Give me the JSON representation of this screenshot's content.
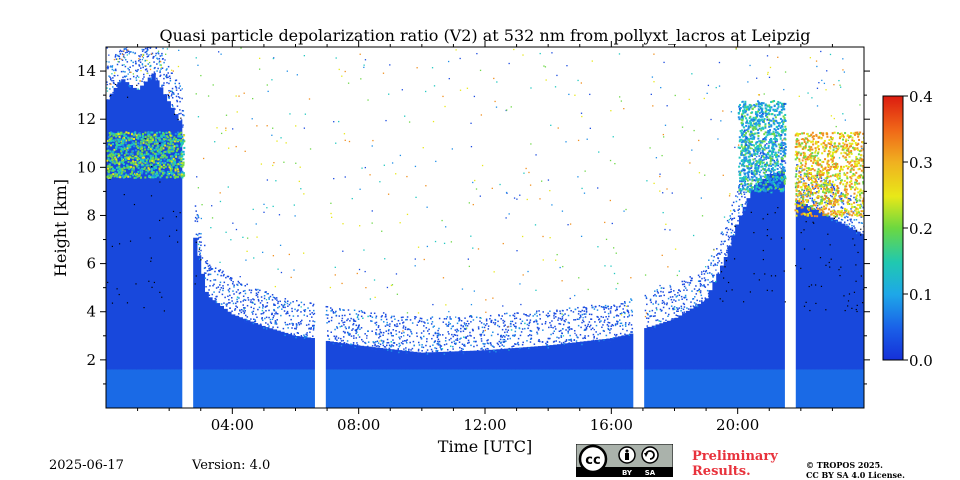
{
  "chart_data": {
    "type": "heatmap",
    "title": "Quasi particle depolarization ratio (V2) at 532 nm from pollyxt_lacros at Leipzig",
    "xlabel": "Time [UTC]",
    "ylabel": "Height [km]",
    "xlim": [
      0,
      24
    ],
    "ylim": [
      0,
      15
    ],
    "x_ticks": [
      {
        "value": 4,
        "label": "04:00"
      },
      {
        "value": 8,
        "label": "08:00"
      },
      {
        "value": 12,
        "label": "12:00"
      },
      {
        "value": 16,
        "label": "16:00"
      },
      {
        "value": 20,
        "label": "20:00"
      }
    ],
    "y_ticks": [
      2,
      4,
      6,
      8,
      10,
      12,
      14
    ],
    "colorbar": {
      "range": [
        0.0,
        0.4
      ],
      "ticks": [
        "0.0",
        "0.1",
        "0.2",
        "0.3",
        "0.4"
      ],
      "colormap": "jet",
      "colors": [
        "#1a4be0",
        "#1f8fe8",
        "#22c8c0",
        "#6fd84a",
        "#e8e81a",
        "#f09020",
        "#dc1c10"
      ]
    },
    "data_gaps_utc": [
      [
        2.45,
        2.8
      ],
      [
        6.6,
        6.95
      ],
      [
        16.65,
        17.05
      ],
      [
        21.5,
        21.8
      ]
    ],
    "cloud_top_km": [
      [
        0,
        13.0
      ],
      [
        0.5,
        14.0
      ],
      [
        1,
        13.5
      ],
      [
        1.5,
        14.2
      ],
      [
        2,
        13.0
      ],
      [
        2.45,
        12.0
      ],
      [
        2.8,
        7.5
      ],
      [
        3.2,
        5.0
      ],
      [
        4,
        4.2
      ],
      [
        5,
        3.7
      ],
      [
        6,
        3.3
      ],
      [
        6.6,
        3.2
      ],
      [
        6.95,
        3.1
      ],
      [
        8,
        2.9
      ],
      [
        10,
        2.6
      ],
      [
        12,
        2.7
      ],
      [
        14,
        2.9
      ],
      [
        16,
        3.2
      ],
      [
        16.65,
        3.4
      ],
      [
        17.05,
        3.6
      ],
      [
        18,
        4.0
      ],
      [
        19,
        4.8
      ],
      [
        19.6,
        6.5
      ],
      [
        20,
        8.0
      ],
      [
        20.5,
        9.5
      ],
      [
        21,
        10.0
      ],
      [
        21.5,
        10.2
      ],
      [
        21.8,
        9.0
      ],
      [
        23,
        8.2
      ],
      [
        24,
        7.5
      ]
    ],
    "high_depol_layers": [
      {
        "t0": 0.0,
        "t1": 2.45,
        "h0": 9.6,
        "h1": 11.5,
        "value": 0.2
      },
      {
        "t0": 20.0,
        "t1": 21.5,
        "h0": 9.0,
        "h1": 12.8,
        "value": 0.15
      },
      {
        "t0": 21.8,
        "t1": 24.0,
        "h0": 8.0,
        "h1": 11.5,
        "value": 0.32
      }
    ]
  },
  "footer": {
    "date": "2025-06-17",
    "version": "Version: 4.0",
    "license_badge": {
      "cc": "cc",
      "by": "BY",
      "sa": "SA"
    },
    "preliminary": [
      "Preliminary",
      "Results."
    ],
    "copyright": [
      "© TROPOS 2025.",
      "CC BY SA 4.0 License."
    ]
  },
  "icons": [
    "cc-icon",
    "by-person-icon",
    "sa-icon"
  ]
}
